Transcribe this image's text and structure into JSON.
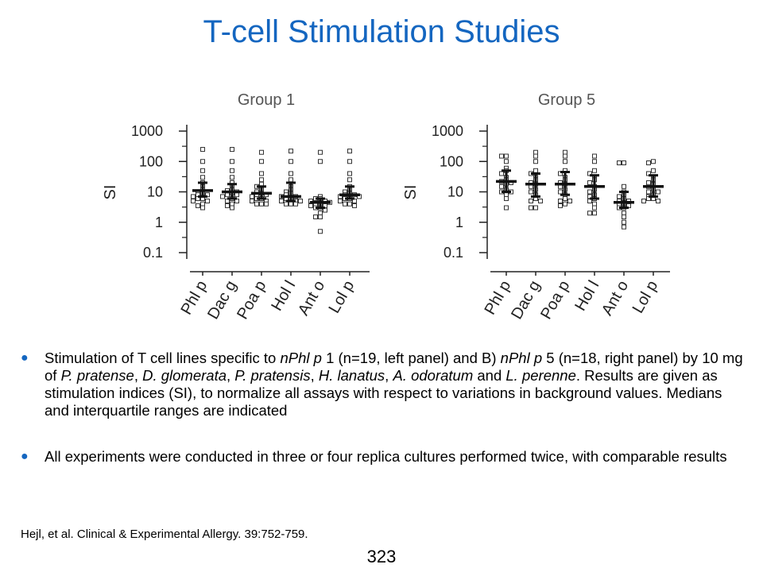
{
  "title": "T-cell Stimulation Studies",
  "chart_data": [
    {
      "type": "scatter",
      "title": "Group 1",
      "ylabel": "SI",
      "yscale": "log",
      "ylim": [
        0.1,
        1000
      ],
      "yticks": [
        "0.1",
        "1",
        "10",
        "100",
        "1000"
      ],
      "categories": [
        "Phl p",
        "Dac g",
        "Poa p",
        "Hol l",
        "Ant o",
        "Lol p"
      ],
      "points": [
        [
          250,
          100,
          50,
          30,
          20,
          15,
          12,
          10,
          9,
          8,
          8,
          7,
          6,
          6,
          5,
          5,
          4,
          3.5,
          3
        ],
        [
          250,
          100,
          50,
          30,
          20,
          15,
          12,
          11,
          10,
          9,
          8,
          8,
          7,
          6,
          5,
          5,
          4,
          3.5,
          3
        ],
        [
          200,
          100,
          40,
          25,
          18,
          15,
          12,
          10,
          9,
          8,
          8,
          7,
          6,
          6,
          5,
          5,
          4,
          4,
          4
        ],
        [
          220,
          100,
          40,
          25,
          15,
          12,
          10,
          9,
          8,
          7,
          7,
          6,
          6,
          5,
          5,
          5,
          4,
          4,
          4
        ],
        [
          200,
          100,
          7,
          6,
          6,
          5,
          5,
          4.5,
          4,
          4,
          3.5,
          3.5,
          3,
          3,
          2.5,
          2,
          1.5,
          1.5,
          0.5
        ],
        [
          220,
          100,
          40,
          25,
          15,
          12,
          10,
          9,
          8,
          8,
          7,
          7,
          6,
          6,
          5,
          5,
          4,
          4,
          3.5
        ]
      ],
      "median": [
        11,
        10,
        9,
        7,
        4.5,
        8
      ],
      "q1": [
        7,
        6,
        6,
        5,
        3,
        6
      ],
      "q3": [
        20,
        18,
        15,
        20,
        6,
        15
      ]
    },
    {
      "type": "scatter",
      "title": "Group 5",
      "ylabel": "SI",
      "yscale": "log",
      "ylim": [
        0.1,
        1000
      ],
      "yticks": [
        "0.1",
        "1",
        "10",
        "100",
        "1000"
      ],
      "categories": [
        "Phl p",
        "Dac g",
        "Poa p",
        "Hol l",
        "Ant o",
        "Lol p"
      ],
      "points": [
        [
          150,
          150,
          100,
          60,
          50,
          40,
          30,
          25,
          22,
          20,
          18,
          15,
          12,
          10,
          10,
          8,
          6,
          3
        ],
        [
          200,
          150,
          100,
          50,
          40,
          30,
          25,
          20,
          18,
          15,
          12,
          10,
          8,
          6,
          5,
          5,
          3,
          3
        ],
        [
          200,
          150,
          100,
          50,
          40,
          30,
          25,
          20,
          18,
          15,
          12,
          10,
          8,
          6,
          5,
          5,
          4,
          3.5
        ],
        [
          150,
          100,
          50,
          40,
          30,
          25,
          20,
          15,
          12,
          10,
          8,
          7,
          6,
          5,
          4,
          3,
          2,
          2
        ],
        [
          90,
          90,
          15,
          10,
          8,
          7,
          6,
          5,
          5,
          4,
          4,
          3.5,
          3,
          3,
          2,
          1.5,
          1,
          0.7
        ],
        [
          100,
          90,
          50,
          40,
          30,
          25,
          20,
          18,
          15,
          12,
          10,
          10,
          8,
          7,
          6,
          6,
          5,
          5
        ]
      ],
      "median": [
        22,
        18,
        18,
        15,
        4.5,
        15
      ],
      "q1": [
        10,
        7,
        8,
        6,
        3,
        7
      ],
      "q3": [
        50,
        40,
        45,
        35,
        10,
        35
      ]
    }
  ],
  "bullets": [
    {
      "parts": [
        {
          "text": "Stimulation of T cell lines specific to ",
          "italic": false
        },
        {
          "text": "nPhl p",
          "italic": true
        },
        {
          "text": " 1 (n=19, left panel) and B) ",
          "italic": false
        },
        {
          "text": "nPhl p",
          "italic": true
        },
        {
          "text": " 5 (n=18, right panel) by 10 mg of ",
          "italic": false
        },
        {
          "text": "P. pratense",
          "italic": true
        },
        {
          "text": ", ",
          "italic": false
        },
        {
          "text": "D. glomerata",
          "italic": true
        },
        {
          "text": ", ",
          "italic": false
        },
        {
          "text": "P. pratensis",
          "italic": true
        },
        {
          "text": ", ",
          "italic": false
        },
        {
          "text": "H. lanatus",
          "italic": true
        },
        {
          "text": ", ",
          "italic": false
        },
        {
          "text": "A. odoratum",
          "italic": true
        },
        {
          "text": " and ",
          "italic": false
        },
        {
          "text": "L. perenne",
          "italic": true
        },
        {
          "text": ". Results are given as stimulation indices (SI), to normalize all assays with respect to variations in background values. Medians and interquartile ranges are indicated",
          "italic": false
        }
      ]
    },
    {
      "parts": [
        {
          "text": "All experiments were conducted in three or four replica cultures performed twice, with comparable results",
          "italic": false
        }
      ]
    }
  ],
  "bullet_marker": "●",
  "citation": "Hejl, et al. Clinical & Experimental Allergy. 39:752-759.",
  "page_number": "323"
}
